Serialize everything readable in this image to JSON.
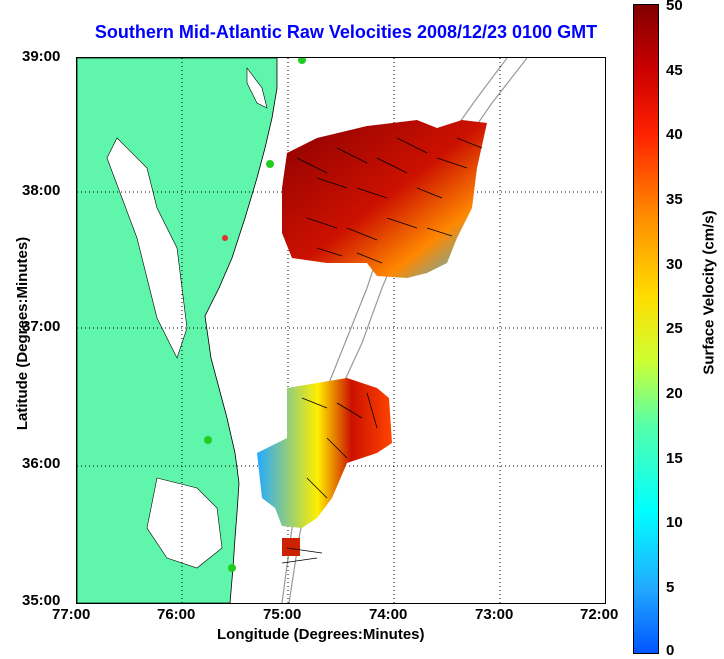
{
  "map": {
    "title": "Southern Mid-Atlantic Raw Velocities 2008/12/23 0100 GMT",
    "xlabel": "Longitude (Degrees:Minutes)",
    "ylabel": "Latitude (Degrees:Minutes)",
    "lat_ticks": [
      "39:00",
      "38:00",
      "37:00",
      "36:00",
      "35:00"
    ],
    "lon_ticks": [
      "77:00",
      "76:00",
      "75:00",
      "74:00",
      "73:00",
      "72:00"
    ],
    "grid": true
  },
  "colorbar": {
    "label": "Surface Velocity (cm/s)",
    "ticks": [
      "50",
      "45",
      "40",
      "35",
      "30",
      "25",
      "20",
      "15",
      "10",
      "5",
      "0"
    ],
    "range": [
      0,
      50
    ]
  },
  "colors": {
    "land": "#5ff5aa",
    "title": "#0000ff",
    "stations": "#21cc21",
    "station_inactive": "#e03030"
  }
}
